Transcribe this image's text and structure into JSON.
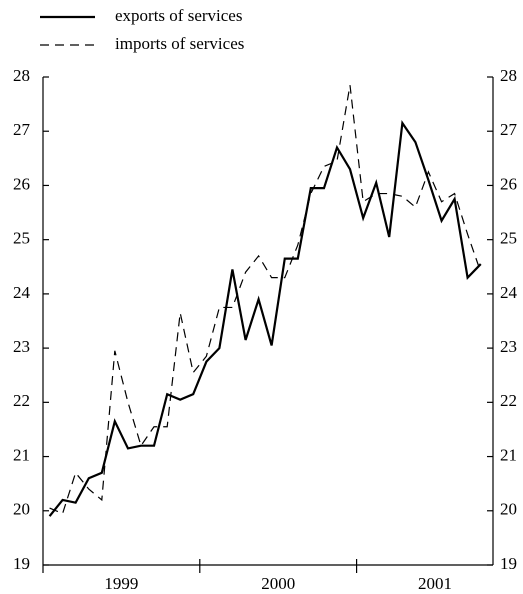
{
  "chart_data": {
    "type": "line",
    "series": [
      {
        "name": "exports of services",
        "color": "#000000",
        "dash": "solid",
        "values": [
          19.9,
          20.2,
          20.15,
          20.6,
          20.7,
          21.65,
          21.15,
          21.2,
          21.2,
          22.15,
          22.05,
          22.15,
          22.75,
          23.0,
          24.45,
          23.15,
          23.9,
          23.05,
          24.65,
          24.65,
          25.95,
          25.95,
          26.7,
          26.3,
          25.4,
          26.05,
          25.05,
          27.15,
          26.8,
          26.1,
          25.35,
          25.75,
          24.3,
          24.55
        ]
      },
      {
        "name": "imports of services",
        "color": "#000000",
        "dash": "dashed",
        "values": [
          20.05,
          19.95,
          20.7,
          20.4,
          20.2,
          22.95,
          22.0,
          21.2,
          21.55,
          21.55,
          23.65,
          22.55,
          22.85,
          23.75,
          23.75,
          24.4,
          24.7,
          24.3,
          24.3,
          24.9,
          25.85,
          26.35,
          26.45,
          27.85,
          25.7,
          25.85,
          25.85,
          25.8,
          25.6,
          26.25,
          25.7,
          25.85,
          25.1,
          24.4
        ]
      }
    ],
    "x": [
      1999.042,
      1999.125,
      1999.208,
      1999.292,
      1999.375,
      1999.458,
      1999.542,
      1999.625,
      1999.708,
      1999.792,
      1999.875,
      1999.958,
      2000.042,
      2000.125,
      2000.208,
      2000.292,
      2000.375,
      2000.458,
      2000.542,
      2000.625,
      2000.708,
      2000.792,
      2000.875,
      2000.958,
      2001.042,
      2001.125,
      2001.208,
      2001.292,
      2001.375,
      2001.458,
      2001.542,
      2001.625,
      2001.708,
      2001.792
    ],
    "xlim": [
      1999,
      2001.87
    ],
    "xticks": [
      2000,
      2001
    ],
    "xlabels": [
      {
        "value": 1999.5,
        "label": "1999"
      },
      {
        "value": 2000.5,
        "label": "2000"
      },
      {
        "value": 2001.5,
        "label": "2001"
      }
    ],
    "ylim": [
      19,
      28
    ],
    "yticks": [
      19,
      20,
      21,
      22,
      23,
      24,
      25,
      26,
      27,
      28
    ],
    "y2lim": [
      19,
      28
    ],
    "y2ticks": [
      19,
      20,
      21,
      22,
      23,
      24,
      25,
      26,
      27,
      28
    ],
    "legend": "top-left"
  }
}
